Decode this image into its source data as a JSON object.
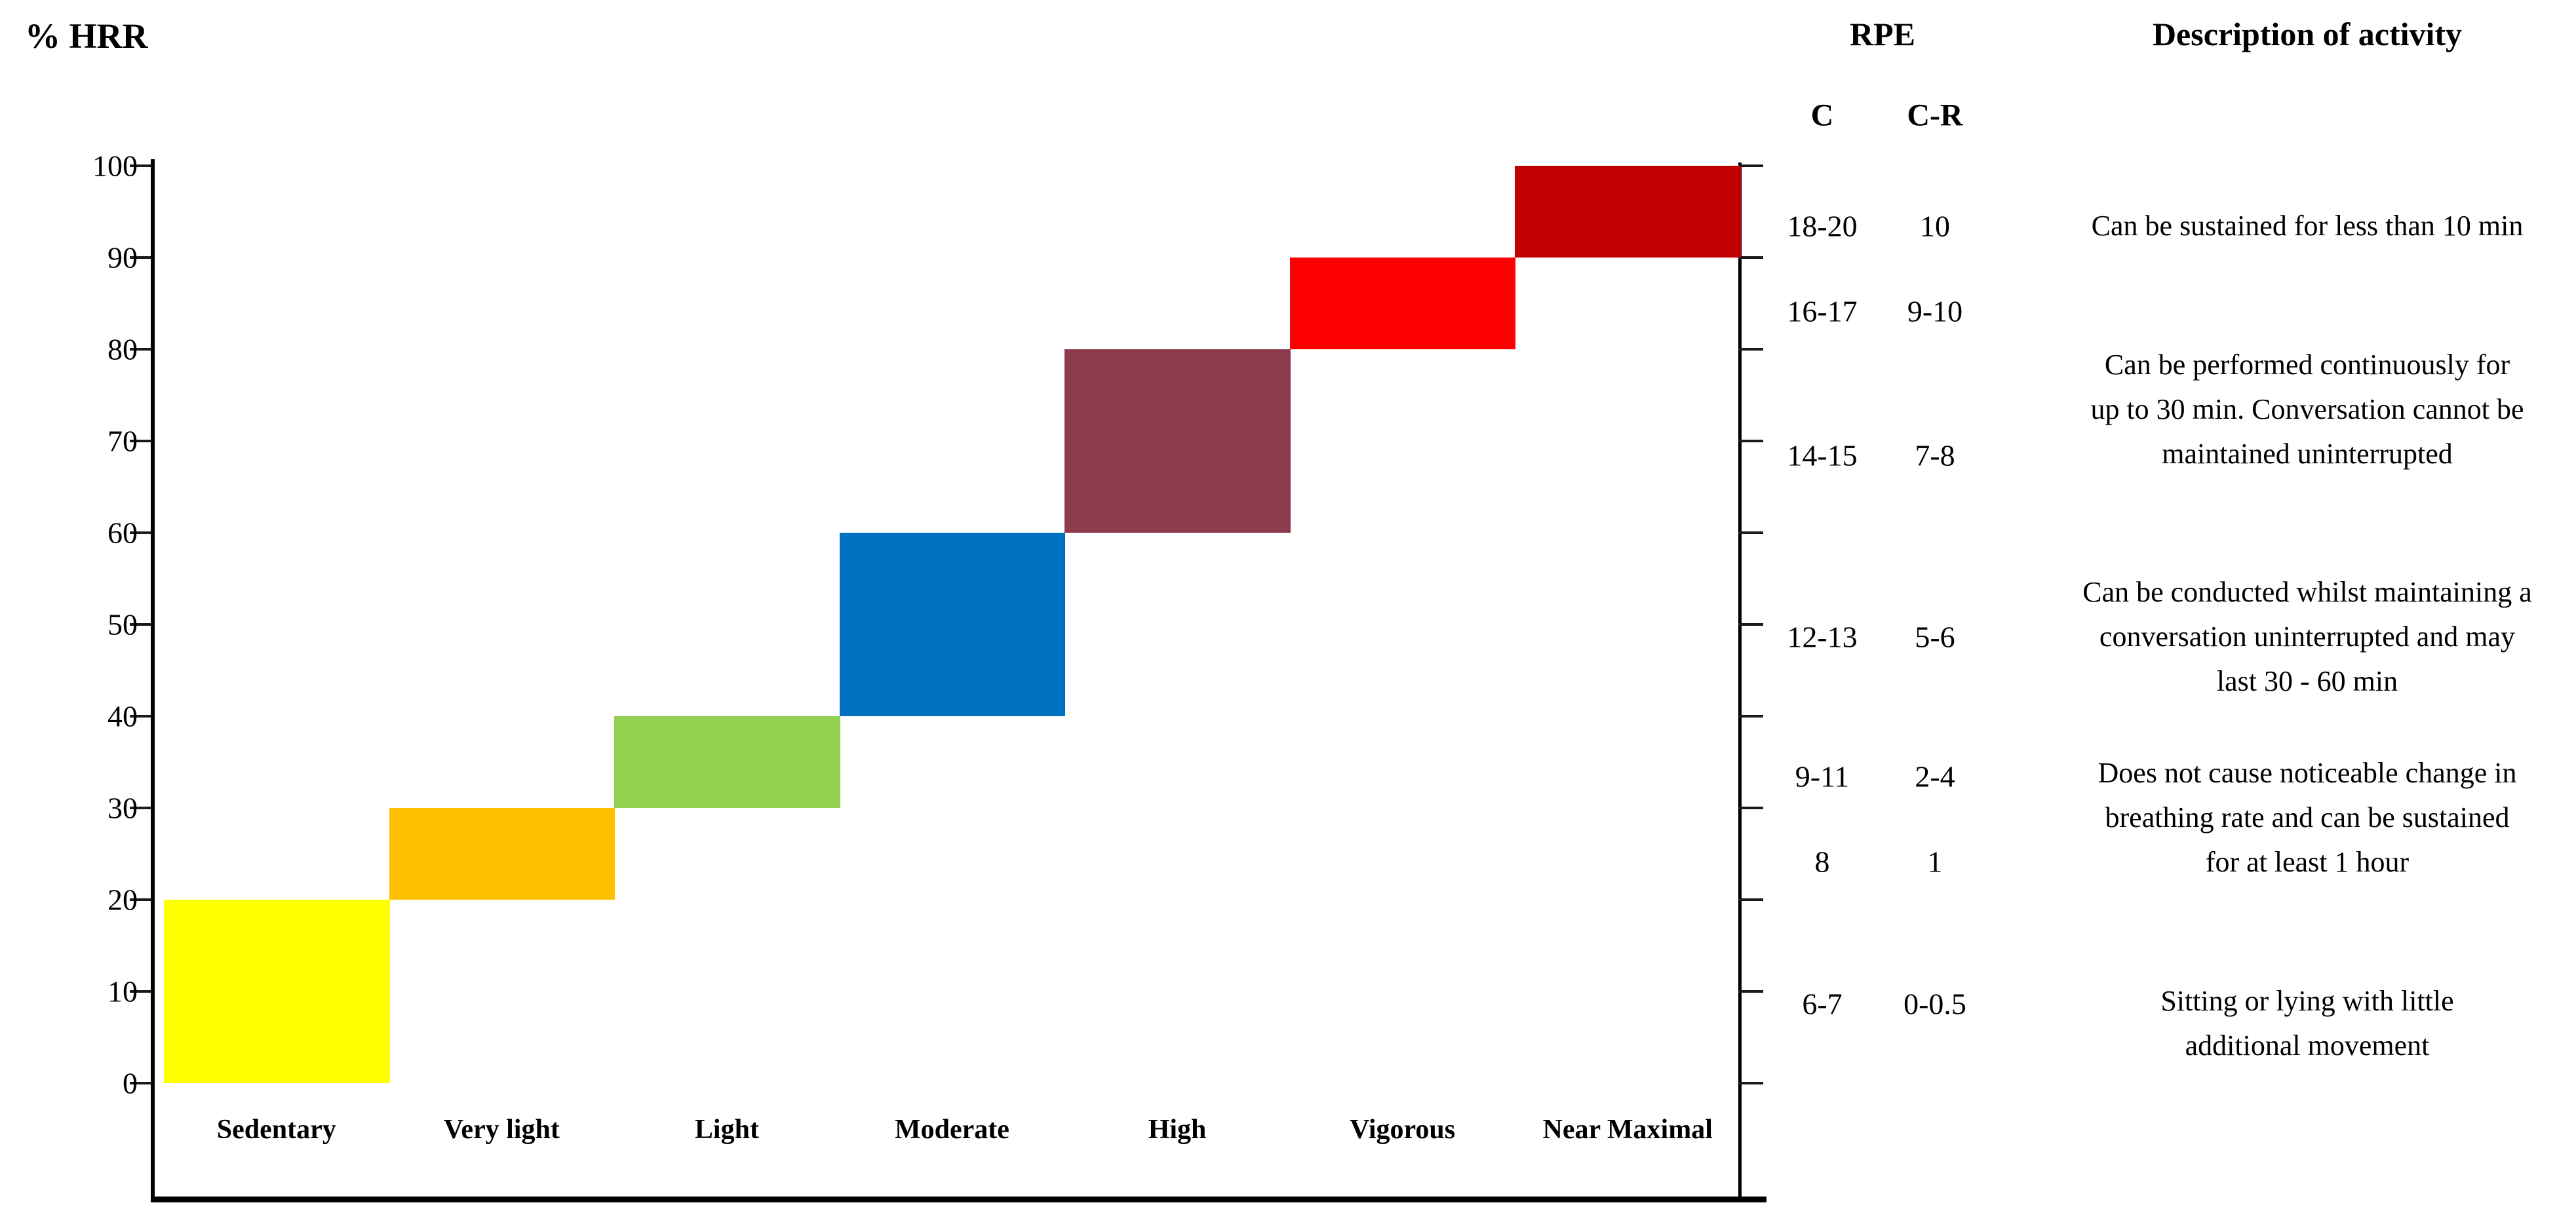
{
  "chart_data": {
    "type": "bar",
    "title": "% HRR",
    "ylabel": "% HRR",
    "xlabel": "",
    "ylim": [
      0,
      100
    ],
    "yticks": [
      0,
      10,
      20,
      30,
      40,
      50,
      60,
      70,
      80,
      90,
      100
    ],
    "grid": false,
    "legend": false,
    "categories": [
      "Sedentary",
      "Very light",
      "Light",
      "Moderate",
      "High",
      "Vigorous",
      "Near Maximal"
    ],
    "bars": [
      {
        "category": "Sedentary",
        "hrr_from": 0,
        "hrr_to": 20,
        "color": "#FFFF00"
      },
      {
        "category": "Very light",
        "hrr_from": 20,
        "hrr_to": 30,
        "color": "#FFC000"
      },
      {
        "category": "Light",
        "hrr_from": 30,
        "hrr_to": 40,
        "color": "#92D050"
      },
      {
        "category": "Moderate",
        "hrr_from": 40,
        "hrr_to": 60,
        "color": "#0070C0"
      },
      {
        "category": "High",
        "hrr_from": 60,
        "hrr_to": 80,
        "color": "#8E3A4D"
      },
      {
        "category": "Vigorous",
        "hrr_from": 80,
        "hrr_to": 90,
        "color": "#FF0000"
      },
      {
        "category": "Near Maximal",
        "hrr_from": 90,
        "hrr_to": 100,
        "color": "#C00000"
      }
    ]
  },
  "rpe_table": {
    "header": "RPE",
    "columns": {
      "c": "C",
      "cr": "C-R"
    },
    "description_header": "Description of activity",
    "rows": [
      {
        "c": "18-20",
        "cr": "10"
      },
      {
        "c": "16-17",
        "cr": "9-10"
      },
      {
        "c": "14-15",
        "cr": "7-8"
      },
      {
        "c": "12-13",
        "cr": "5-6"
      },
      {
        "c": "9-11",
        "cr": "2-4"
      },
      {
        "c": "8",
        "cr": "1"
      },
      {
        "c": "6-7",
        "cr": "0-0.5"
      }
    ],
    "descriptions": [
      "Can be sustained for less than 10 min",
      "Can be performed continuously for\nup to 30 min. Conversation cannot be\nmaintained uninterrupted",
      "Can be conducted whilst maintaining a\nconversation uninterrupted and may\nlast 30 - 60 min",
      "Does not cause noticeable change in\nbreathing rate and can be sustained\nfor at least 1 hour",
      "Sitting or lying with little\nadditional movement"
    ]
  }
}
